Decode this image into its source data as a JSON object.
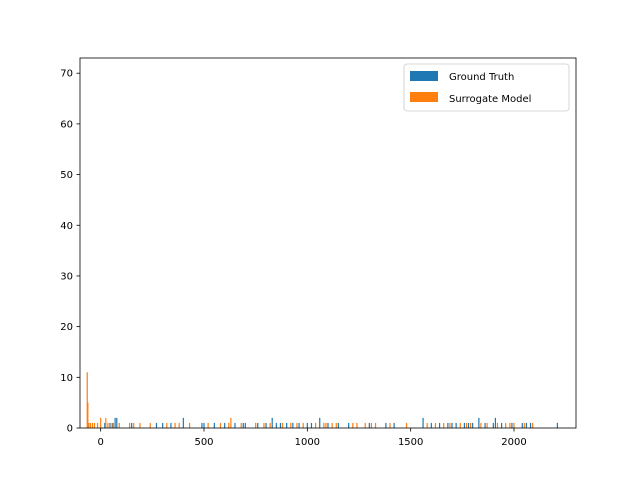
{
  "chart_data": {
    "type": "bar",
    "chart_kind": "histogram",
    "title": "",
    "xlabel": "",
    "ylabel": "",
    "xlim": [
      -100,
      2300
    ],
    "ylim": [
      0,
      73
    ],
    "grid": false,
    "legend_position": "top-right",
    "x_ticks": [
      0,
      500,
      1000,
      1500,
      2000
    ],
    "x_tick_labels": [
      "0",
      "500",
      "1000",
      "1500",
      "2000"
    ],
    "y_ticks": [
      0,
      10,
      20,
      30,
      40,
      50,
      60,
      70
    ],
    "y_tick_labels": [
      "0",
      "10",
      "20",
      "30",
      "40",
      "50",
      "60",
      "70"
    ],
    "series": [
      {
        "name": "Ground Truth",
        "color": "#1f77b4",
        "bars": [
          {
            "x": 20,
            "y": 1
          },
          {
            "x": 45,
            "y": 1
          },
          {
            "x": 60,
            "y": 1
          },
          {
            "x": 70,
            "y": 2
          },
          {
            "x": 78,
            "y": 2
          },
          {
            "x": 150,
            "y": 1
          },
          {
            "x": 270,
            "y": 1
          },
          {
            "x": 300,
            "y": 1
          },
          {
            "x": 340,
            "y": 1
          },
          {
            "x": 400,
            "y": 2
          },
          {
            "x": 490,
            "y": 1
          },
          {
            "x": 500,
            "y": 1
          },
          {
            "x": 550,
            "y": 1
          },
          {
            "x": 600,
            "y": 1
          },
          {
            "x": 650,
            "y": 1
          },
          {
            "x": 690,
            "y": 1
          },
          {
            "x": 700,
            "y": 1
          },
          {
            "x": 760,
            "y": 1
          },
          {
            "x": 800,
            "y": 1
          },
          {
            "x": 830,
            "y": 2
          },
          {
            "x": 850,
            "y": 1
          },
          {
            "x": 870,
            "y": 1
          },
          {
            "x": 900,
            "y": 1
          },
          {
            "x": 930,
            "y": 1
          },
          {
            "x": 960,
            "y": 1
          },
          {
            "x": 1000,
            "y": 1
          },
          {
            "x": 1020,
            "y": 1
          },
          {
            "x": 1060,
            "y": 2
          },
          {
            "x": 1100,
            "y": 1
          },
          {
            "x": 1150,
            "y": 1
          },
          {
            "x": 1200,
            "y": 1
          },
          {
            "x": 1300,
            "y": 1
          },
          {
            "x": 1380,
            "y": 1
          },
          {
            "x": 1420,
            "y": 1
          },
          {
            "x": 1560,
            "y": 2
          },
          {
            "x": 1600,
            "y": 1
          },
          {
            "x": 1640,
            "y": 1
          },
          {
            "x": 1680,
            "y": 1
          },
          {
            "x": 1700,
            "y": 1
          },
          {
            "x": 1720,
            "y": 1
          },
          {
            "x": 1760,
            "y": 1
          },
          {
            "x": 1780,
            "y": 1
          },
          {
            "x": 1800,
            "y": 1
          },
          {
            "x": 1830,
            "y": 2
          },
          {
            "x": 1860,
            "y": 1
          },
          {
            "x": 1900,
            "y": 1
          },
          {
            "x": 1910,
            "y": 2
          },
          {
            "x": 1940,
            "y": 1
          },
          {
            "x": 1990,
            "y": 1
          },
          {
            "x": 2040,
            "y": 1
          },
          {
            "x": 2060,
            "y": 1
          },
          {
            "x": 2080,
            "y": 1
          },
          {
            "x": 2210,
            "y": 1
          }
        ]
      },
      {
        "name": "Surrogate Model",
        "color": "#ff7f0e",
        "bars": [
          {
            "x": -65,
            "y": 11
          },
          {
            "x": -62,
            "y": 5
          },
          {
            "x": -58,
            "y": 1
          },
          {
            "x": -50,
            "y": 1
          },
          {
            "x": -40,
            "y": 1
          },
          {
            "x": -30,
            "y": 1
          },
          {
            "x": -15,
            "y": 1
          },
          {
            "x": 0,
            "y": 2
          },
          {
            "x": 25,
            "y": 2
          },
          {
            "x": 35,
            "y": 1
          },
          {
            "x": 55,
            "y": 1
          },
          {
            "x": 90,
            "y": 1
          },
          {
            "x": 140,
            "y": 1
          },
          {
            "x": 160,
            "y": 1
          },
          {
            "x": 190,
            "y": 1
          },
          {
            "x": 240,
            "y": 1
          },
          {
            "x": 320,
            "y": 1
          },
          {
            "x": 360,
            "y": 1
          },
          {
            "x": 380,
            "y": 1
          },
          {
            "x": 430,
            "y": 1
          },
          {
            "x": 520,
            "y": 1
          },
          {
            "x": 580,
            "y": 1
          },
          {
            "x": 620,
            "y": 1
          },
          {
            "x": 630,
            "y": 2
          },
          {
            "x": 680,
            "y": 1
          },
          {
            "x": 750,
            "y": 1
          },
          {
            "x": 790,
            "y": 1
          },
          {
            "x": 820,
            "y": 1
          },
          {
            "x": 880,
            "y": 1
          },
          {
            "x": 920,
            "y": 1
          },
          {
            "x": 950,
            "y": 1
          },
          {
            "x": 980,
            "y": 1
          },
          {
            "x": 1040,
            "y": 1
          },
          {
            "x": 1080,
            "y": 1
          },
          {
            "x": 1090,
            "y": 1
          },
          {
            "x": 1120,
            "y": 1
          },
          {
            "x": 1140,
            "y": 1
          },
          {
            "x": 1220,
            "y": 1
          },
          {
            "x": 1240,
            "y": 1
          },
          {
            "x": 1280,
            "y": 1
          },
          {
            "x": 1310,
            "y": 1
          },
          {
            "x": 1330,
            "y": 1
          },
          {
            "x": 1400,
            "y": 1
          },
          {
            "x": 1480,
            "y": 1
          },
          {
            "x": 1580,
            "y": 1
          },
          {
            "x": 1620,
            "y": 1
          },
          {
            "x": 1660,
            "y": 1
          },
          {
            "x": 1690,
            "y": 1
          },
          {
            "x": 1740,
            "y": 1
          },
          {
            "x": 1770,
            "y": 1
          },
          {
            "x": 1790,
            "y": 1
          },
          {
            "x": 1840,
            "y": 1
          },
          {
            "x": 1870,
            "y": 1
          },
          {
            "x": 1920,
            "y": 1
          },
          {
            "x": 1960,
            "y": 1
          },
          {
            "x": 1980,
            "y": 1
          },
          {
            "x": 2000,
            "y": 1
          },
          {
            "x": 2050,
            "y": 1
          },
          {
            "x": 2090,
            "y": 1
          }
        ]
      }
    ]
  }
}
